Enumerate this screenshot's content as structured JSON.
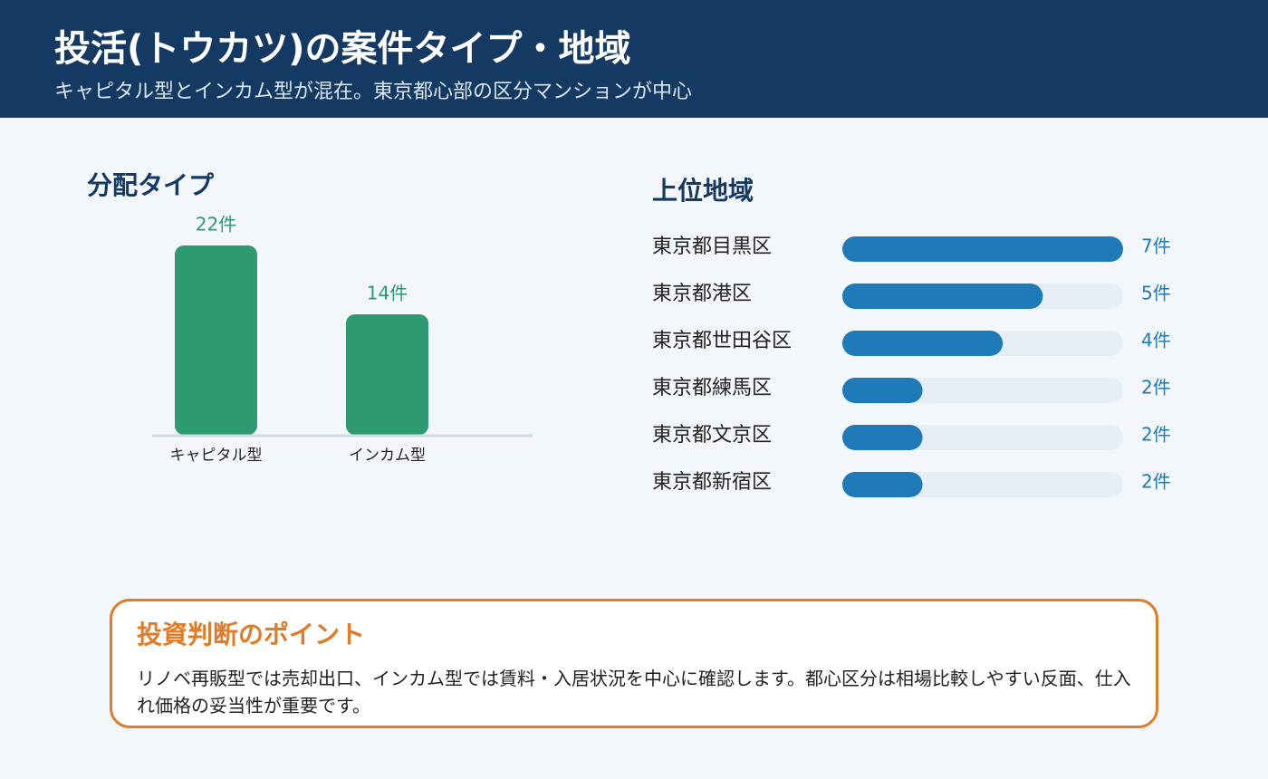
{
  "header": {
    "title": "投活(トウカツ)の案件タイプ・地域",
    "subtitle": "キャピタル型とインカム型が混在。東京都心部の区分マンションが中心"
  },
  "chart_data": [
    {
      "type": "bar",
      "orientation": "vertical",
      "title": "分配タイプ",
      "categories": [
        "キャピタル型",
        "インカム型"
      ],
      "values": [
        22,
        14
      ],
      "value_labels": [
        "22件",
        "14件"
      ],
      "color": "#2e9a72",
      "ylim": [
        0,
        22
      ]
    },
    {
      "type": "bar",
      "orientation": "horizontal",
      "title": "上位地域",
      "categories": [
        "東京都目黒区",
        "東京都港区",
        "東京都世田谷区",
        "東京都練馬区",
        "東京都文京区",
        "東京都新宿区"
      ],
      "values": [
        7,
        5,
        4,
        2,
        2,
        2
      ],
      "value_labels": [
        "7件",
        "5件",
        "4件",
        "2件",
        "2件",
        "2件"
      ],
      "color": "#1f7ab8",
      "xlim": [
        0,
        7
      ]
    }
  ],
  "note": {
    "title": "投資判断のポイント",
    "text": "リノベ再販型では売却出口、インカム型では賃料・入居状況を中心に確認します。都心区分は相場比較しやすい反面、仕入れ価格の妥当性が重要です。"
  }
}
